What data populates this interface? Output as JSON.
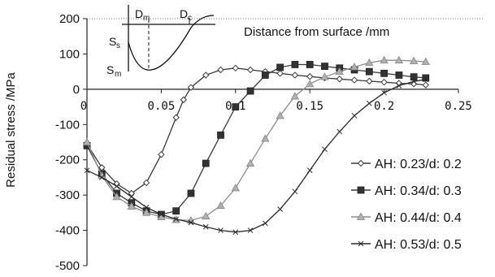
{
  "chart_data": {
    "type": "line",
    "xlabel": "Distance from surface  /mm",
    "ylabel": "Residual stress /MPa",
    "xlim": [
      0,
      0.25
    ],
    "ylim": [
      -500,
      200
    ],
    "x_ticks": [
      "0",
      "0.05",
      "0.1",
      "0.15",
      "0.2",
      "0.25"
    ],
    "y_ticks": [
      "200",
      "100",
      "0",
      "-100",
      "-200",
      "-300",
      "-400",
      "-500"
    ],
    "legend_position": "right",
    "series": [
      {
        "name": "AH: 0.23/d: 0.2",
        "marker": "diamond",
        "color": "#3a3a3a",
        "points": [
          [
            0,
            -155
          ],
          [
            0.01,
            -222
          ],
          [
            0.02,
            -268
          ],
          [
            0.03,
            -295
          ],
          [
            0.04,
            -265
          ],
          [
            0.05,
            -185
          ],
          [
            0.06,
            -80
          ],
          [
            0.065,
            -30
          ],
          [
            0.07,
            5
          ],
          [
            0.08,
            40
          ],
          [
            0.09,
            55
          ],
          [
            0.1,
            60
          ],
          [
            0.11,
            55
          ],
          [
            0.12,
            50
          ],
          [
            0.13,
            45
          ],
          [
            0.14,
            40
          ],
          [
            0.15,
            36
          ],
          [
            0.16,
            32
          ],
          [
            0.17,
            29
          ],
          [
            0.18,
            26
          ],
          [
            0.19,
            23
          ],
          [
            0.2,
            20
          ],
          [
            0.21,
            17
          ],
          [
            0.22,
            15
          ],
          [
            0.228,
            12
          ]
        ]
      },
      {
        "name": "AH: 0.34/d: 0.3",
        "marker": "square",
        "color": "#3a3a3a",
        "points": [
          [
            0,
            -160
          ],
          [
            0.01,
            -240
          ],
          [
            0.02,
            -295
          ],
          [
            0.03,
            -322
          ],
          [
            0.04,
            -345
          ],
          [
            0.05,
            -355
          ],
          [
            0.06,
            -345
          ],
          [
            0.07,
            -295
          ],
          [
            0.08,
            -210
          ],
          [
            0.09,
            -130
          ],
          [
            0.1,
            -50
          ],
          [
            0.11,
            -5
          ],
          [
            0.12,
            40
          ],
          [
            0.13,
            62
          ],
          [
            0.14,
            70
          ],
          [
            0.15,
            70
          ],
          [
            0.16,
            65
          ],
          [
            0.17,
            60
          ],
          [
            0.18,
            55
          ],
          [
            0.19,
            50
          ],
          [
            0.2,
            45
          ],
          [
            0.21,
            40
          ],
          [
            0.22,
            35
          ],
          [
            0.228,
            32
          ]
        ]
      },
      {
        "name": "AH: 0.44/d: 0.4",
        "marker": "triangle",
        "color": "#8c8c8c",
        "points": [
          [
            0,
            -150
          ],
          [
            0.01,
            -245
          ],
          [
            0.02,
            -305
          ],
          [
            0.03,
            -332
          ],
          [
            0.04,
            -350
          ],
          [
            0.05,
            -362
          ],
          [
            0.06,
            -370
          ],
          [
            0.07,
            -372
          ],
          [
            0.08,
            -360
          ],
          [
            0.09,
            -330
          ],
          [
            0.1,
            -280
          ],
          [
            0.11,
            -210
          ],
          [
            0.12,
            -140
          ],
          [
            0.13,
            -75
          ],
          [
            0.14,
            -20
          ],
          [
            0.15,
            15
          ],
          [
            0.16,
            35
          ],
          [
            0.17,
            50
          ],
          [
            0.18,
            63
          ],
          [
            0.19,
            75
          ],
          [
            0.2,
            82
          ],
          [
            0.21,
            82
          ],
          [
            0.22,
            80
          ],
          [
            0.228,
            78
          ]
        ]
      },
      {
        "name": "AH: 0.53/d: 0.5",
        "marker": "cross",
        "color": "#2a2a2a",
        "points": [
          [
            0,
            -230
          ],
          [
            0.01,
            -250
          ],
          [
            0.02,
            -275
          ],
          [
            0.03,
            -305
          ],
          [
            0.04,
            -335
          ],
          [
            0.05,
            -355
          ],
          [
            0.06,
            -368
          ],
          [
            0.07,
            -378
          ],
          [
            0.08,
            -390
          ],
          [
            0.09,
            -400
          ],
          [
            0.1,
            -405
          ],
          [
            0.11,
            -400
          ],
          [
            0.12,
            -380
          ],
          [
            0.13,
            -340
          ],
          [
            0.14,
            -290
          ],
          [
            0.15,
            -230
          ],
          [
            0.16,
            -170
          ],
          [
            0.17,
            -120
          ],
          [
            0.18,
            -75
          ],
          [
            0.19,
            -40
          ],
          [
            0.2,
            -10
          ],
          [
            0.21,
            10
          ],
          [
            0.22,
            22
          ],
          [
            0.228,
            28
          ]
        ]
      }
    ],
    "inset": {
      "labels": [
        "D",
        "m",
        "D",
        "c",
        "S",
        "s",
        "S",
        "m"
      ]
    }
  }
}
